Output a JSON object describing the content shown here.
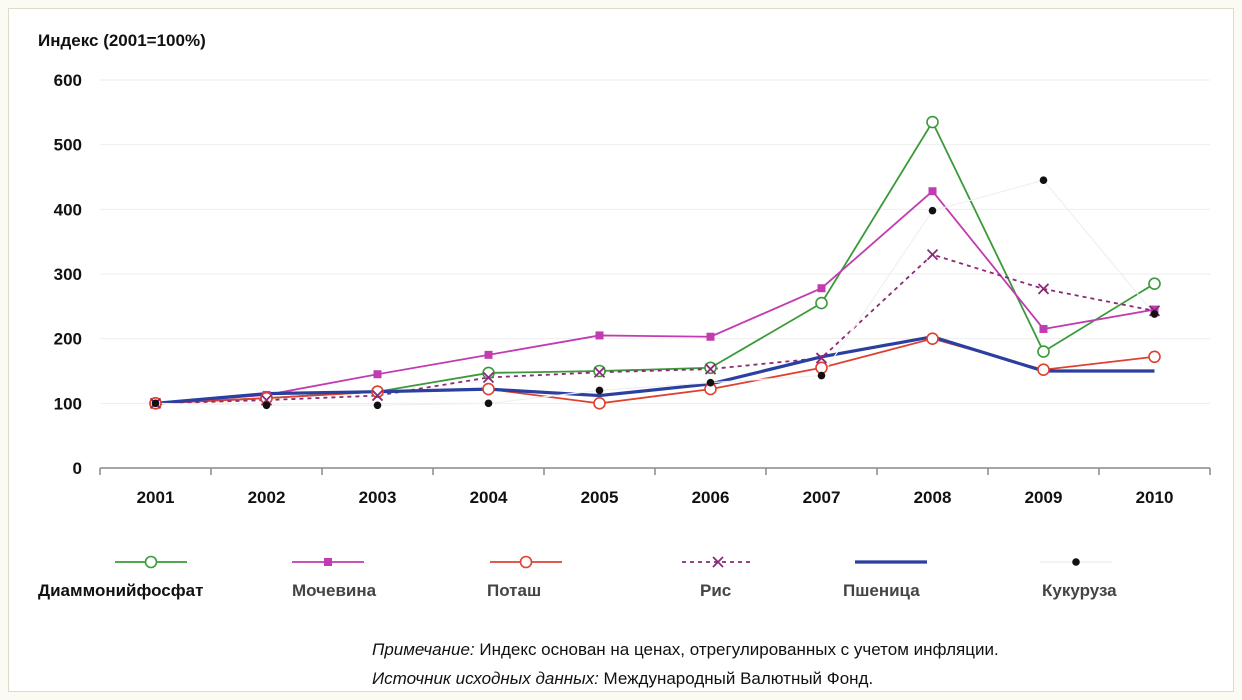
{
  "chart_data": {
    "type": "line",
    "ylabel": "Индекс (2001=100%)",
    "categories": [
      "2001",
      "2002",
      "2003",
      "2004",
      "2005",
      "2006",
      "2007",
      "2008",
      "2009",
      "2010"
    ],
    "ylim": [
      0,
      600
    ],
    "yticks": [
      0,
      100,
      200,
      300,
      400,
      500,
      600
    ],
    "grid": true,
    "legend_position": "bottom",
    "series": [
      {
        "name": "Диаммонийфосфат",
        "color": "#3a9a3a",
        "marker": "circle-open",
        "style": "solid",
        "values": [
          100,
          108,
          118,
          147,
          150,
          155,
          255,
          535,
          180,
          285
        ]
      },
      {
        "name": "Мочевина",
        "color": "#c03cb0",
        "marker": "square",
        "style": "solid",
        "values": [
          100,
          113,
          145,
          175,
          205,
          203,
          278,
          428,
          215,
          245
        ]
      },
      {
        "name": "Поташ",
        "color": "#e04030",
        "marker": "circle-open",
        "style": "solid",
        "values": [
          100,
          108,
          118,
          122,
          100,
          122,
          155,
          200,
          152,
          172
        ]
      },
      {
        "name": "Рис",
        "color": "#8a2a78",
        "marker": "x",
        "style": "dotted",
        "values": [
          100,
          105,
          112,
          140,
          148,
          153,
          170,
          330,
          277,
          243
        ]
      },
      {
        "name": "Пшеница",
        "color": "#2a3fa0",
        "marker": "none",
        "style": "solid-thick",
        "values": [
          100,
          115,
          118,
          122,
          112,
          130,
          172,
          203,
          150,
          150
        ]
      },
      {
        "name": "Кукуруза",
        "color": "#111111",
        "marker": "dot",
        "style": "none",
        "values": [
          100,
          97,
          97,
          100,
          120,
          132,
          143,
          398,
          445,
          238
        ]
      }
    ]
  },
  "notes": {
    "note_label": "Примечание:",
    "note_text": " Индекс основан на ценах, отрегулированных с учетом инфляции.",
    "source_label": "Источник исходных данных:",
    "source_text": " Международный Валютный Фонд."
  }
}
